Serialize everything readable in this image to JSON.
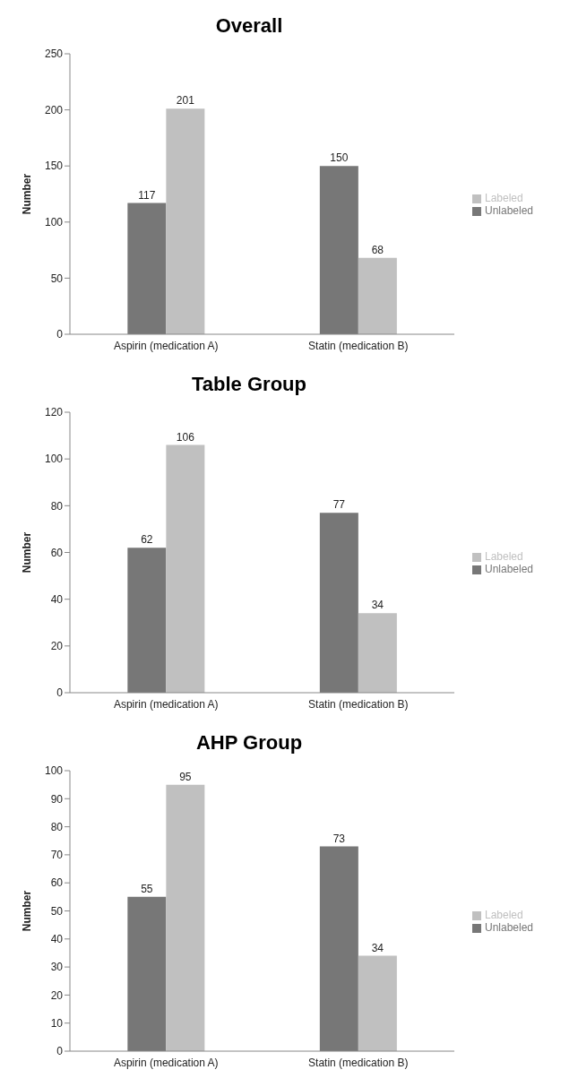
{
  "chart_data": [
    {
      "type": "bar",
      "title": "Overall",
      "ylabel": "Number",
      "categories": [
        "Aspirin (medication A)",
        "Statin (medication B)"
      ],
      "series": [
        {
          "name": "Unlabeled",
          "color": "#777777",
          "values": [
            117,
            150
          ]
        },
        {
          "name": "Labeled",
          "color": "#c0c0c0",
          "values": [
            201,
            68
          ]
        }
      ],
      "ylim": [
        0,
        250
      ],
      "yticks": [
        0,
        50,
        100,
        150,
        200,
        250
      ],
      "data_labels": true,
      "legend": "right",
      "grid": false
    },
    {
      "type": "bar",
      "title": "Table Group",
      "ylabel": "Number",
      "categories": [
        "Aspirin (medication A)",
        "Statin (medication B)"
      ],
      "series": [
        {
          "name": "Unlabeled",
          "color": "#777777",
          "values": [
            62,
            77
          ]
        },
        {
          "name": "Labeled",
          "color": "#c0c0c0",
          "values": [
            106,
            34
          ]
        }
      ],
      "ylim": [
        0,
        120
      ],
      "yticks": [
        0,
        20,
        40,
        60,
        80,
        100,
        120
      ],
      "data_labels": true,
      "legend": "right",
      "grid": false
    },
    {
      "type": "bar",
      "title": "AHP Group",
      "ylabel": "Number",
      "categories": [
        "Aspirin (medication A)",
        "Statin (medication B)"
      ],
      "series": [
        {
          "name": "Unlabeled",
          "color": "#777777",
          "values": [
            55,
            73
          ]
        },
        {
          "name": "Labeled",
          "color": "#c0c0c0",
          "values": [
            95,
            34
          ]
        }
      ],
      "ylim": [
        0,
        100
      ],
      "yticks": [
        0,
        10,
        20,
        30,
        40,
        50,
        60,
        70,
        80,
        90,
        100
      ],
      "data_labels": true,
      "legend": "right",
      "grid": false
    }
  ]
}
